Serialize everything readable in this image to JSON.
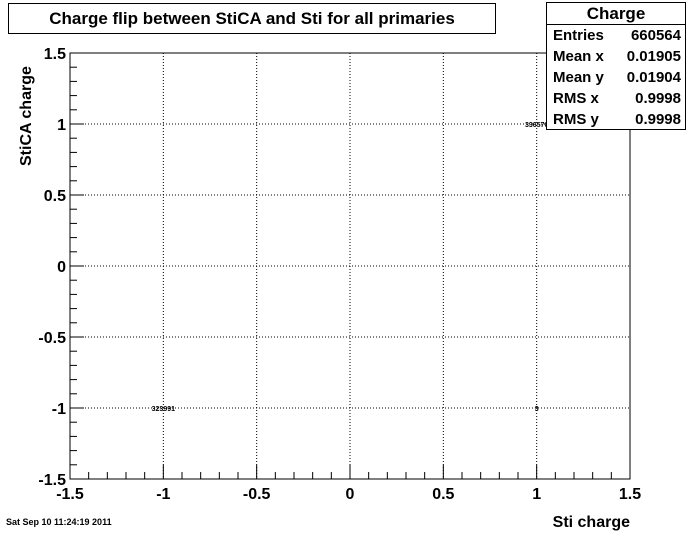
{
  "chart_data": {
    "type": "heatmap",
    "title": "Charge flip between StiCA and Sti for all primaries",
    "xlabel": "Sti charge",
    "ylabel": "StiCA charge",
    "xlim": [
      -1.5,
      1.5
    ],
    "ylim": [
      -1.5,
      1.5
    ],
    "xticks": [
      "-1.5",
      "-1",
      "-0.5",
      "0",
      "0.5",
      "1",
      "1.5"
    ],
    "yticks": [
      "-1.5",
      "-1",
      "-0.5",
      "0",
      "0.5",
      "1",
      "1.5"
    ],
    "grid": true,
    "cells": [
      {
        "x": -1,
        "y": -1,
        "count": "323991"
      },
      {
        "x": 1,
        "y": 1,
        "count": "336570"
      },
      {
        "x": 1,
        "y": -1,
        "count": "3"
      }
    ]
  },
  "stats": {
    "title": "Charge",
    "rows": [
      {
        "label": "Entries",
        "value": "660564"
      },
      {
        "label": "Mean x",
        "value": "0.01905"
      },
      {
        "label": "Mean y",
        "value": "0.01904"
      },
      {
        "label": "RMS x",
        "value": "0.9998"
      },
      {
        "label": "RMS y",
        "value": "0.9998"
      }
    ]
  },
  "timestamp": "Sat Sep 10 11:24:19 2011"
}
